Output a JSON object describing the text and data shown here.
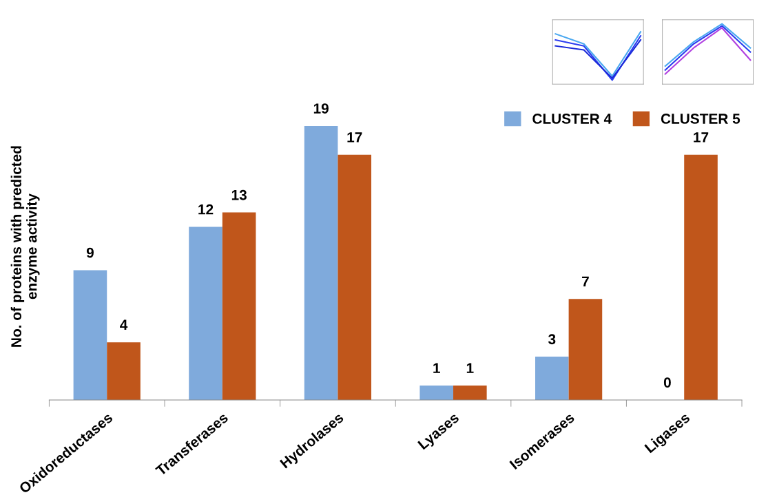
{
  "chart_data": {
    "type": "bar",
    "ylabel": "No. of proteins with predicted\nenzyme activity",
    "categories": [
      "Oxidoreductases",
      "Transferases",
      "Hydrolases",
      "Lyases",
      "Isomerases",
      "Ligases"
    ],
    "series": [
      {
        "name": "CLUSTER 4",
        "color": "#7faadc",
        "values": [
          9,
          12,
          19,
          1,
          3,
          0
        ]
      },
      {
        "name": "CLUSTER 5",
        "color": "#c0561b",
        "values": [
          4,
          13,
          17,
          1,
          7,
          17
        ]
      }
    ],
    "data_labels": true,
    "legend": "top right",
    "grid": false,
    "tick_labels": "x"
  }
}
